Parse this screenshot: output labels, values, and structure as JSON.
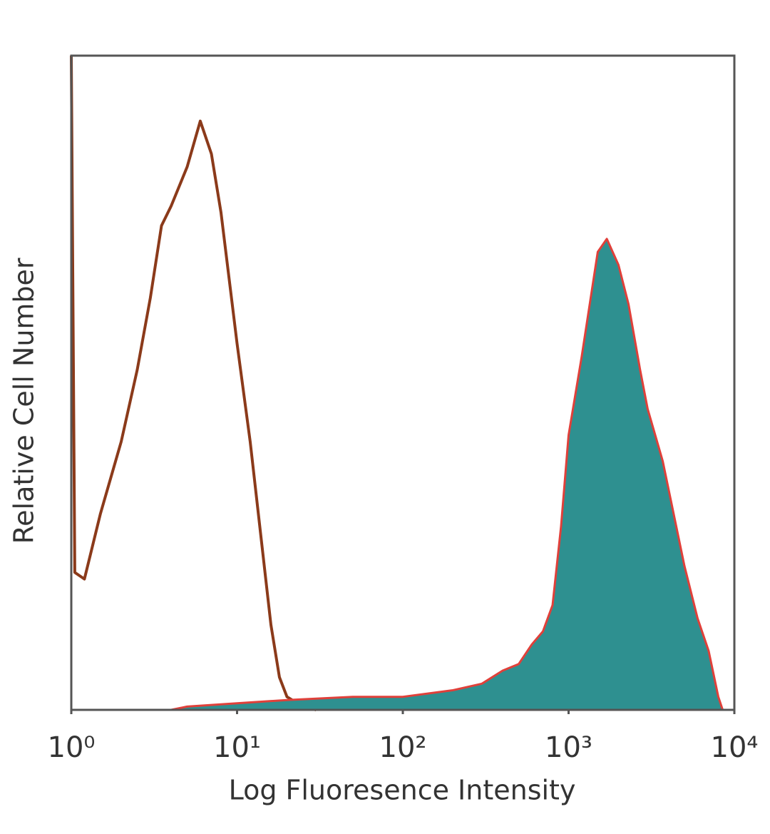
{
  "chart_data": {
    "type": "histogram-overlay",
    "x_label": "Log Fluoresence Intensity",
    "y_label": "Relative Cell Number",
    "xscale": "log",
    "xlim": [
      1,
      10000
    ],
    "xticks": [
      {
        "value": 1,
        "label": "10⁰"
      },
      {
        "value": 10,
        "label": "10¹"
      },
      {
        "value": 100,
        "label": "10²"
      },
      {
        "value": 1000,
        "label": "10³"
      },
      {
        "value": 10000,
        "label": "10⁴"
      }
    ],
    "ylim": [
      0,
      100
    ],
    "series": [
      {
        "color": "#8b3a1a",
        "filled": false,
        "x": [
          1,
          1.05,
          1.2,
          1.5,
          2,
          2.5,
          3,
          3.5,
          4,
          5,
          6,
          7,
          8,
          10,
          12,
          14,
          16,
          18,
          20,
          25,
          30
        ],
        "values": [
          100,
          21,
          20,
          30,
          41,
          52,
          63,
          74,
          77,
          83,
          90,
          85,
          76,
          56,
          41,
          26,
          13,
          5,
          2,
          0.5,
          0
        ]
      },
      {
        "color": "#e0403a",
        "fill": "#2e9090",
        "filled": true,
        "x": [
          4,
          5,
          10,
          20,
          50,
          100,
          200,
          300,
          400,
          500,
          600,
          700,
          800,
          900,
          1000,
          1200,
          1500,
          1700,
          2000,
          2300,
          2700,
          3000,
          3700,
          5000,
          6000,
          7000,
          8000,
          8500
        ],
        "values": [
          0,
          0.5,
          1,
          1.5,
          2,
          2,
          3,
          4,
          6,
          7,
          10,
          12,
          16,
          28,
          42,
          54,
          70,
          72,
          68,
          62,
          52,
          46,
          38,
          22,
          14,
          9,
          2,
          0
        ]
      }
    ]
  }
}
